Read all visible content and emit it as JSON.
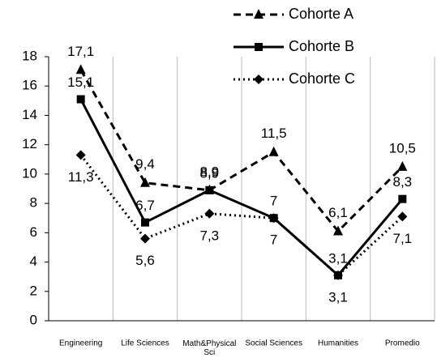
{
  "chart_data": {
    "type": "line",
    "categories": [
      "Engineering",
      "Life Sciences",
      "Math&Physical Sci",
      "Social Sciences",
      "Humanities",
      "Promedio"
    ],
    "series": [
      {
        "name": "Cohorte A",
        "color": "#000000",
        "values": [
          17.1,
          9.4,
          8.9,
          11.5,
          6.1,
          10.5
        ],
        "value_labels": [
          "17,1",
          "9,4",
          "8,9",
          "11,5",
          "6,1",
          "10,5"
        ]
      },
      {
        "name": "Cohorte B",
        "color": "#000000",
        "values": [
          15.1,
          6.7,
          8.9,
          7,
          3.1,
          8.3
        ],
        "value_labels": [
          "15,1",
          "6,7",
          "8,9",
          "7",
          "3,1",
          "8,3"
        ]
      },
      {
        "name": "Cohorte C",
        "color": "#000000",
        "values": [
          11.3,
          5.6,
          7.3,
          7,
          3.1,
          7.1
        ],
        "value_labels": [
          "11,3",
          "5,6",
          "7,3",
          "7",
          "3,1",
          "7,1"
        ]
      }
    ],
    "ylim": [
      0,
      18
    ],
    "yticks": [
      0,
      2,
      4,
      6,
      8,
      10,
      12,
      14,
      16,
      18
    ],
    "grid": true,
    "legend": "top-right"
  }
}
